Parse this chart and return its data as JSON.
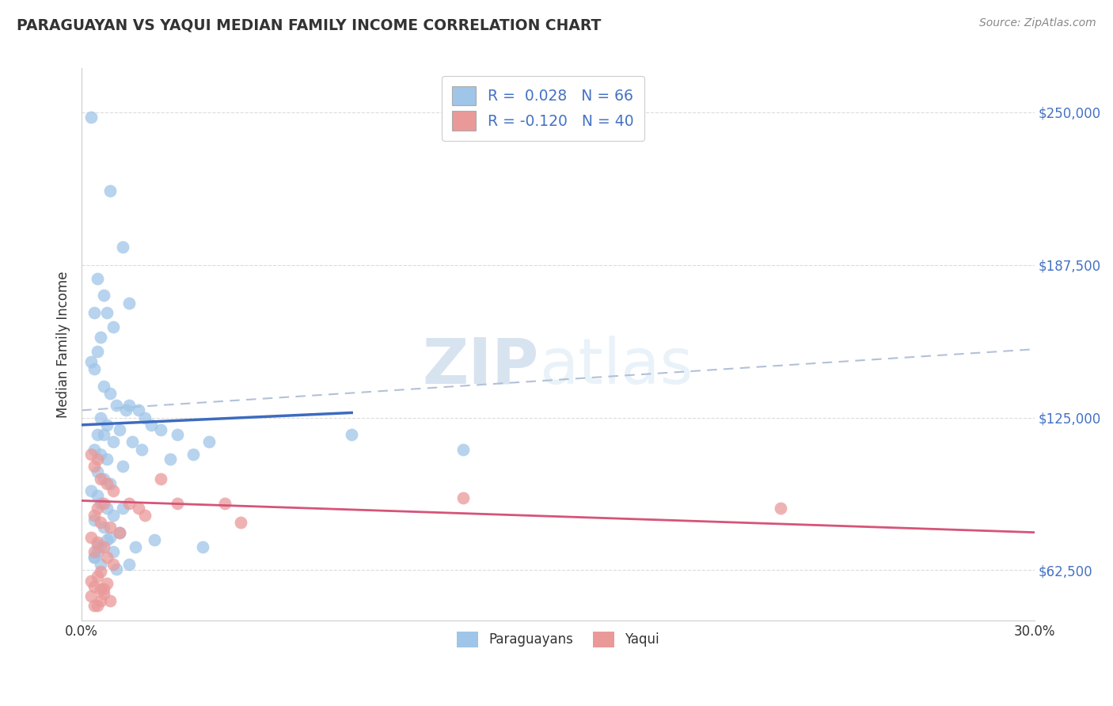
{
  "title": "PARAGUAYAN VS YAQUI MEDIAN FAMILY INCOME CORRELATION CHART",
  "source": "Source: ZipAtlas.com",
  "ylabel": "Median Family Income",
  "yticks": [
    62500,
    125000,
    187500,
    250000
  ],
  "ytick_labels": [
    "$62,500",
    "$125,000",
    "$187,500",
    "$250,000"
  ],
  "xlim": [
    0.0,
    30.0
  ],
  "ylim": [
    42000,
    268000
  ],
  "blue_R": 0.028,
  "blue_N": 66,
  "pink_R": -0.12,
  "pink_N": 40,
  "blue_color": "#9fc5e8",
  "pink_color": "#ea9999",
  "blue_fill_color": "#9fc5e8",
  "pink_fill_color": "#ea9999",
  "blue_line_color": "#3d6bbf",
  "pink_line_color": "#d5547a",
  "dashed_line_color": "#aabbd4",
  "watermark_zip": "ZIP",
  "watermark_atlas": "atlas",
  "legend_label_blue": "Paraguayans",
  "legend_label_pink": "Yaqui",
  "blue_line_x0": 0.0,
  "blue_line_x1": 8.5,
  "blue_line_y0": 122000,
  "blue_line_y1": 127000,
  "pink_line_x0": 0.0,
  "pink_line_x1": 30.0,
  "pink_line_y0": 91000,
  "pink_line_y1": 78000,
  "dashed_line_x0": 0.0,
  "dashed_line_x1": 30.0,
  "dashed_line_y0": 128000,
  "dashed_line_y1": 153000,
  "blue_scatter_x": [
    0.3,
    0.9,
    1.3,
    0.5,
    0.7,
    1.5,
    0.4,
    0.8,
    1.0,
    0.6,
    0.5,
    0.3,
    0.4,
    0.7,
    0.9,
    1.1,
    1.4,
    0.6,
    0.8,
    1.2,
    0.5,
    0.7,
    1.0,
    0.4,
    0.6,
    0.8,
    1.3,
    0.5,
    0.7,
    0.9,
    1.5,
    1.8,
    2.0,
    2.5,
    3.0,
    2.2,
    1.6,
    1.9,
    2.8,
    3.5,
    4.0,
    0.3,
    0.5,
    0.6,
    0.8,
    1.0,
    0.4,
    0.7,
    1.2,
    0.9,
    1.7,
    2.3,
    0.5,
    0.4,
    0.6,
    8.5,
    12.0,
    1.3,
    0.8,
    0.5,
    0.6,
    1.0,
    0.4,
    3.8,
    1.5,
    1.1
  ],
  "blue_scatter_y": [
    248000,
    218000,
    195000,
    182000,
    175000,
    172000,
    168000,
    168000,
    162000,
    158000,
    152000,
    148000,
    145000,
    138000,
    135000,
    130000,
    128000,
    125000,
    122000,
    120000,
    118000,
    118000,
    115000,
    112000,
    110000,
    108000,
    105000,
    103000,
    100000,
    98000,
    130000,
    128000,
    125000,
    120000,
    118000,
    122000,
    115000,
    112000,
    108000,
    110000,
    115000,
    95000,
    93000,
    90000,
    88000,
    85000,
    83000,
    80000,
    78000,
    76000,
    72000,
    75000,
    70000,
    68000,
    65000,
    118000,
    112000,
    88000,
    75000,
    73000,
    72000,
    70000,
    68000,
    72000,
    65000,
    63000
  ],
  "pink_scatter_x": [
    0.3,
    0.5,
    0.4,
    0.6,
    0.8,
    1.0,
    0.7,
    0.5,
    0.4,
    0.6,
    0.9,
    1.2,
    0.3,
    0.5,
    0.7,
    0.4,
    0.8,
    1.0,
    0.6,
    1.5,
    1.8,
    2.0,
    2.5,
    3.0,
    0.5,
    0.3,
    0.4,
    0.6,
    0.7,
    0.9,
    4.5,
    5.0,
    12.0,
    22.0,
    0.4,
    0.5,
    0.6,
    0.3,
    0.7,
    0.8
  ],
  "pink_scatter_y": [
    110000,
    108000,
    105000,
    100000,
    98000,
    95000,
    90000,
    88000,
    85000,
    82000,
    80000,
    78000,
    76000,
    74000,
    72000,
    70000,
    68000,
    65000,
    62000,
    90000,
    88000,
    85000,
    100000,
    90000,
    60000,
    58000,
    56000,
    55000,
    53000,
    50000,
    90000,
    82000,
    92000,
    88000,
    48000,
    48000,
    50000,
    52000,
    55000,
    57000
  ]
}
